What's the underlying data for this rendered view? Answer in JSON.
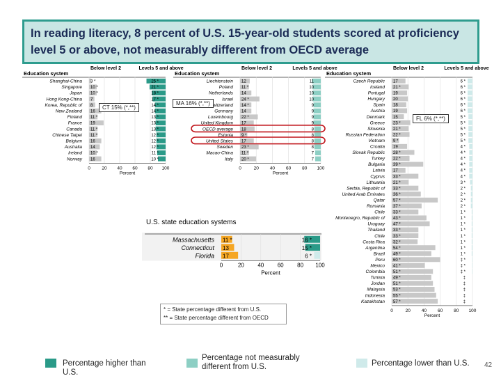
{
  "title": "In reading literacy, 8 percent of U.S. 15-year-old students scored at proficiency level 5 or above, not measurably different from OECD average",
  "colors": {
    "higher": "#2a9a88",
    "not_different": "#8dcfc4",
    "lower": "#cfeaea",
    "below2": "#c8c8c8",
    "state_below2": "#f5a623"
  },
  "callouts": {
    "ct": "CT 15% (*,**)",
    "ma": "MA 16% (*,**)",
    "fl": "FL 6% (*,**)"
  },
  "note": {
    "line1": "* = State percentage different from U.S.",
    "line2": "** = State percentage different from OECD"
  },
  "legend": {
    "higher": "Percentage higher than U.S.",
    "not_different": "Percentage not measurably different from U.S.",
    "lower": "Percentage lower than U.S."
  },
  "page_number": "42",
  "chart_data": [
    {
      "type": "bar",
      "header": {
        "system": "Education system",
        "below": "Below level 2",
        "above": "Levels 5 and above"
      },
      "xlabel": "Percent",
      "xlim": [
        0,
        100
      ],
      "ticks": [
        "0",
        "20",
        "40",
        "60",
        "80",
        "100"
      ],
      "rows": [
        {
          "name": "Shanghai-China",
          "below": 3,
          "below_label": "3 *",
          "above": 25,
          "above_label": "25 *",
          "group": "higher"
        },
        {
          "name": "Singapore",
          "below": 10,
          "below_label": "10 *",
          "above": 21,
          "above_label": "21 *",
          "group": "higher"
        },
        {
          "name": "Japan",
          "below": 10,
          "below_label": "10 *",
          "above": 18,
          "above_label": "18 *",
          "group": "higher"
        },
        {
          "name": "Hong Kong-China",
          "below": 7,
          "below_label": "7",
          "above": 17,
          "above_label": "17 *",
          "group": "higher"
        },
        {
          "name": "Korea, Republic of",
          "below": 8,
          "below_label": "8",
          "above": 14,
          "above_label": "14 *",
          "group": "higher"
        },
        {
          "name": "New Zealand",
          "below": 16,
          "below_label": "16",
          "above": 14,
          "above_label": "14 *",
          "group": "higher"
        },
        {
          "name": "Finland",
          "below": 11,
          "below_label": "11 *",
          "above": 13,
          "above_label": "13 *",
          "group": "higher"
        },
        {
          "name": "France",
          "below": 19,
          "below_label": "19",
          "above": 13,
          "above_label": "13 *",
          "group": "higher"
        },
        {
          "name": "Canada",
          "below": 11,
          "below_label": "11 *",
          "above": 13,
          "above_label": "13 *",
          "group": "higher"
        },
        {
          "name": "Chinese Taipei",
          "below": 11,
          "below_label": "11 *",
          "above": 12,
          "above_label": "12 *",
          "group": "higher"
        },
        {
          "name": "Belgium",
          "below": 16,
          "below_label": "16",
          "above": 12,
          "above_label": "12 *",
          "group": "higher"
        },
        {
          "name": "Australia",
          "below": 14,
          "below_label": "14",
          "above": 12,
          "above_label": "12 *",
          "group": "higher"
        },
        {
          "name": "Ireland",
          "below": 10,
          "below_label": "10 *",
          "above": 11,
          "above_label": "11 *",
          "group": "higher"
        },
        {
          "name": "Norway",
          "below": 16,
          "below_label": "16",
          "above": 10,
          "above_label": "10 *",
          "group": "higher"
        }
      ]
    },
    {
      "type": "bar",
      "header": {
        "system": "Education system",
        "below": "Below level 2",
        "above": "Levels 5 and above"
      },
      "xlabel": "Percent",
      "xlim": [
        0,
        100
      ],
      "ticks": [
        "0",
        "20",
        "40",
        "60",
        "80",
        "100"
      ],
      "rows": [
        {
          "name": "Liechtenstein",
          "below": 12,
          "below_label": "12",
          "above": 11,
          "above_label": "11",
          "group": "not_different"
        },
        {
          "name": "Poland",
          "below": 11,
          "below_label": "11 *",
          "above": 10,
          "above_label": "10",
          "group": "not_different"
        },
        {
          "name": "Netherlands",
          "below": 14,
          "below_label": "14",
          "above": 10,
          "above_label": "10",
          "group": "not_different"
        },
        {
          "name": "Israel",
          "below": 24,
          "below_label": "24 *",
          "above": 10,
          "above_label": "10",
          "group": "not_different"
        },
        {
          "name": "Switzerland",
          "below": 14,
          "below_label": "14 *",
          "above": 9,
          "above_label": "9",
          "group": "not_different"
        },
        {
          "name": "Germany",
          "below": 14,
          "below_label": "14",
          "above": 9,
          "above_label": "9",
          "group": "not_different"
        },
        {
          "name": "Luxembourg",
          "below": 22,
          "below_label": "22 *",
          "above": 9,
          "above_label": "9",
          "group": "not_different"
        },
        {
          "name": "United Kingdom",
          "below": 17,
          "below_label": "17",
          "above": 9,
          "above_label": "9",
          "group": "not_different"
        },
        {
          "name": "OECD average",
          "below": 18,
          "below_label": "18",
          "above": 8,
          "above_label": "8",
          "group": "not_different",
          "circled": true
        },
        {
          "name": "Estonia",
          "below": 9,
          "below_label": "9 *",
          "above": 8,
          "above_label": "8",
          "group": "not_different"
        },
        {
          "name": "United States",
          "below": 17,
          "below_label": "17",
          "above": 8,
          "above_label": "8",
          "group": "not_different",
          "circled": true
        },
        {
          "name": "Sweden",
          "below": 23,
          "below_label": "23 *",
          "above": 8,
          "above_label": "8",
          "group": "not_different"
        },
        {
          "name": "Macao-China",
          "below": 11,
          "below_label": "11 *",
          "above": 7,
          "above_label": "7",
          "group": "not_different"
        },
        {
          "name": "Italy",
          "below": 20,
          "below_label": "20 *",
          "above": 7,
          "above_label": "7",
          "group": "not_different"
        }
      ]
    },
    {
      "type": "bar",
      "header": {
        "system": "Education system",
        "below": "Below level 2",
        "above": "Levels 5 and above"
      },
      "xlabel": "Percent",
      "xlim": [
        0,
        100
      ],
      "ticks": [
        "0",
        "20",
        "40",
        "60",
        "80",
        "100"
      ],
      "rows": [
        {
          "name": "Czech Republic",
          "below": 17,
          "below_label": "17",
          "above": 6,
          "above_label": "6 *",
          "group": "lower"
        },
        {
          "name": "Iceland",
          "below": 21,
          "below_label": "21 *",
          "above": 6,
          "above_label": "6 *",
          "group": "lower"
        },
        {
          "name": "Portugal",
          "below": 19,
          "below_label": "19",
          "above": 6,
          "above_label": "6 *",
          "group": "lower"
        },
        {
          "name": "Hungary",
          "below": 20,
          "below_label": "20",
          "above": 6,
          "above_label": "6 *",
          "group": "lower"
        },
        {
          "name": "Spain",
          "below": 18,
          "below_label": "18",
          "above": 6,
          "above_label": "6 *",
          "group": "lower"
        },
        {
          "name": "Austria",
          "below": 19,
          "below_label": "19",
          "above": 6,
          "above_label": "6 *",
          "group": "lower"
        },
        {
          "name": "Denmark",
          "below": 15,
          "below_label": "15",
          "above": 5,
          "above_label": "5 *",
          "group": "lower"
        },
        {
          "name": "Greece",
          "below": 23,
          "below_label": "23 *",
          "above": 5,
          "above_label": "5 *",
          "group": "lower"
        },
        {
          "name": "Slovenia",
          "below": 21,
          "below_label": "21 *",
          "above": 5,
          "above_label": "5 *",
          "group": "lower"
        },
        {
          "name": "Russian Federation",
          "below": 22,
          "below_label": "22 *",
          "above": 5,
          "above_label": "5 *",
          "group": "lower"
        },
        {
          "name": "Vietnam",
          "below": 9,
          "below_label": "9 *",
          "above": 5,
          "above_label": "5 *",
          "group": "lower"
        },
        {
          "name": "Croatia",
          "below": 19,
          "below_label": "19",
          "above": 4,
          "above_label": "4 *",
          "group": "lower"
        },
        {
          "name": "Slovak Republic",
          "below": 28,
          "below_label": "28 *",
          "above": 4,
          "above_label": "4 *",
          "group": "lower"
        },
        {
          "name": "Turkey",
          "below": 22,
          "below_label": "22 *",
          "above": 4,
          "above_label": "4 *",
          "group": "lower"
        },
        {
          "name": "Bulgaria",
          "below": 39,
          "below_label": "39 *",
          "above": 4,
          "above_label": "4 *",
          "group": "lower"
        },
        {
          "name": "Latvia",
          "below": 17,
          "below_label": "17",
          "above": 4,
          "above_label": "4 *",
          "group": "lower"
        },
        {
          "name": "Cyprus",
          "below": 33,
          "below_label": "33 *",
          "above": 4,
          "above_label": "4 *",
          "group": "lower"
        },
        {
          "name": "Lithuania",
          "below": 21,
          "below_label": "21 *",
          "above": 3,
          "above_label": "3 *",
          "group": "lower"
        },
        {
          "name": "Serbia, Republic of",
          "below": 33,
          "below_label": "33 *",
          "above": 2,
          "above_label": "2 *",
          "group": "lower"
        },
        {
          "name": "United Arab Emirates",
          "below": 36,
          "below_label": "36 *",
          "above": 2,
          "above_label": "2 *",
          "group": "lower"
        },
        {
          "name": "Qatar",
          "below": 57,
          "below_label": "57 *",
          "above": 2,
          "above_label": "2 *",
          "group": "lower"
        },
        {
          "name": "Romania",
          "below": 37,
          "below_label": "37 *",
          "above": 2,
          "above_label": "2 *",
          "group": "lower"
        },
        {
          "name": "Chile",
          "below": 33,
          "below_label": "33 *",
          "above": 1,
          "above_label": "1 *",
          "group": "lower"
        },
        {
          "name": "Montenegro, Republic of",
          "below": 43,
          "below_label": "43 *",
          "above": 1,
          "above_label": "1 *",
          "group": "lower"
        },
        {
          "name": "Uruguay",
          "below": 47,
          "below_label": "47 *",
          "above": 1,
          "above_label": "1 *",
          "group": "lower"
        },
        {
          "name": "Thailand",
          "below": 33,
          "below_label": "33 *",
          "above": 1,
          "above_label": "1 *",
          "group": "lower"
        },
        {
          "name": "Chile",
          "below": 33,
          "below_label": "33 *",
          "above": 1,
          "above_label": "1 *",
          "group": "lower"
        },
        {
          "name": "Costa Rica",
          "below": 32,
          "below_label": "32 *",
          "above": 1,
          "above_label": "1 *",
          "group": "lower"
        },
        {
          "name": "Argentina",
          "below": 54,
          "below_label": "54 *",
          "above": 1,
          "above_label": "1 *",
          "group": "lower"
        },
        {
          "name": "Brazil",
          "below": 49,
          "below_label": "49 *",
          "above": 1,
          "above_label": "1 *",
          "group": "lower"
        },
        {
          "name": "Peru",
          "below": 60,
          "below_label": "60 *",
          "above": 0.5,
          "above_label": "‡ *",
          "group": "lower"
        },
        {
          "name": "Mexico",
          "below": 41,
          "below_label": "41 *",
          "above": 0.5,
          "above_label": "‡ *",
          "group": "lower"
        },
        {
          "name": "Colombia",
          "below": 51,
          "below_label": "51 *",
          "above": 0.5,
          "above_label": "‡ *",
          "group": "lower"
        },
        {
          "name": "Tunisia",
          "below": 49,
          "below_label": "49 *",
          "above": 0,
          "above_label": "‡",
          "group": "lower"
        },
        {
          "name": "Jordan",
          "below": 51,
          "below_label": "51 *",
          "above": 0,
          "above_label": "‡",
          "group": "lower"
        },
        {
          "name": "Malaysia",
          "below": 53,
          "below_label": "53 *",
          "above": 0,
          "above_label": "‡",
          "group": "lower"
        },
        {
          "name": "Indonesia",
          "below": 55,
          "below_label": "55 *",
          "above": 0,
          "above_label": "‡",
          "group": "lower"
        },
        {
          "name": "Kazakhstan",
          "below": 57,
          "below_label": "57 *",
          "above": 0,
          "above_label": "‡",
          "group": "lower"
        }
      ]
    },
    {
      "type": "bar",
      "header": {
        "system": "U.S. state education systems"
      },
      "xlabel": "Percent",
      "xlim": [
        0,
        100
      ],
      "ticks": [
        "0",
        "20",
        "40",
        "60",
        "80",
        "100"
      ],
      "rows": [
        {
          "name": "Massachusetts",
          "below": 11,
          "below_label": "11 *",
          "above": 16,
          "above_label": "16 *",
          "group": "higher"
        },
        {
          "name": "Connecticut",
          "below": 13,
          "below_label": "13",
          "above": 15,
          "above_label": "15 *",
          "group": "higher"
        },
        {
          "name": "Florida",
          "below": 17,
          "below_label": "17",
          "above": 6,
          "above_label": "6 *",
          "group": "lower"
        }
      ]
    }
  ]
}
